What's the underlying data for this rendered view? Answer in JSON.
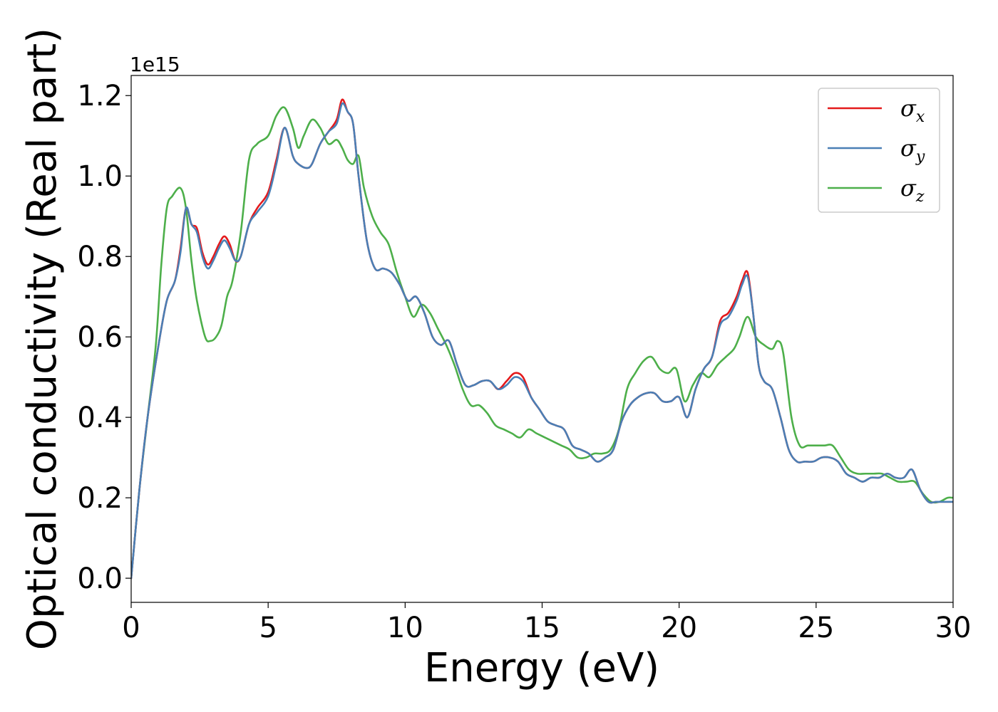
{
  "chart_data": {
    "type": "line",
    "title": "",
    "xlabel": "Energy (eV)",
    "ylabel": "Optical conductivity (Real part)",
    "y_offset_label": "1e15",
    "xlim": [
      0,
      30
    ],
    "ylim": [
      -0.06,
      1.25
    ],
    "xticks": [
      0,
      5,
      10,
      15,
      20,
      25,
      30
    ],
    "xtick_labels": [
      "0",
      "5",
      "10",
      "15",
      "20",
      "25",
      "30"
    ],
    "yticks": [
      0.0,
      0.2,
      0.4,
      0.6,
      0.8,
      1.0,
      1.2
    ],
    "ytick_labels": [
      "0.0",
      "0.2",
      "0.4",
      "0.6",
      "0.8",
      "1.0",
      "1.2"
    ],
    "grid": false,
    "legend_position": "top-right",
    "series": [
      {
        "name": "σx",
        "legend_symbol": "σ",
        "legend_sub": "x",
        "color": "#e41a1c",
        "x": [
          0,
          0.3,
          0.6,
          1.0,
          1.3,
          1.6,
          1.8,
          2.0,
          2.2,
          2.4,
          2.6,
          2.8,
          3.0,
          3.2,
          3.4,
          3.6,
          3.8,
          4.0,
          4.3,
          4.6,
          5.0,
          5.3,
          5.6,
          5.9,
          6.1,
          6.4,
          6.6,
          6.9,
          7.2,
          7.5,
          7.7,
          7.9,
          8.1,
          8.3,
          8.6,
          8.9,
          9.2,
          9.5,
          9.8,
          10.1,
          10.4,
          10.7,
          11.0,
          11.3,
          11.6,
          11.9,
          12.2,
          12.5,
          12.8,
          13.1,
          13.4,
          13.7,
          14.0,
          14.3,
          14.6,
          14.9,
          15.2,
          15.5,
          15.8,
          16.1,
          16.4,
          16.7,
          17.0,
          17.3,
          17.6,
          17.9,
          18.2,
          18.5,
          18.8,
          19.1,
          19.4,
          19.7,
          20.0,
          20.3,
          20.6,
          20.9,
          21.2,
          21.5,
          21.8,
          22.1,
          22.3,
          22.5,
          22.7,
          22.9,
          23.1,
          23.4,
          23.7,
          24.0,
          24.3,
          24.6,
          24.9,
          25.2,
          25.5,
          25.8,
          26.1,
          26.4,
          26.7,
          27.0,
          27.3,
          27.6,
          27.9,
          28.2,
          28.5,
          28.8,
          29.1,
          29.4,
          29.7,
          30.0
        ],
        "y": [
          0.0,
          0.22,
          0.4,
          0.58,
          0.69,
          0.74,
          0.82,
          0.92,
          0.88,
          0.87,
          0.81,
          0.78,
          0.8,
          0.83,
          0.85,
          0.83,
          0.79,
          0.8,
          0.88,
          0.92,
          0.96,
          1.04,
          1.12,
          1.05,
          1.03,
          1.02,
          1.03,
          1.08,
          1.11,
          1.14,
          1.19,
          1.16,
          1.13,
          1.0,
          0.84,
          0.77,
          0.77,
          0.76,
          0.73,
          0.69,
          0.7,
          0.66,
          0.6,
          0.58,
          0.59,
          0.53,
          0.48,
          0.48,
          0.49,
          0.49,
          0.47,
          0.49,
          0.51,
          0.5,
          0.45,
          0.42,
          0.39,
          0.38,
          0.37,
          0.33,
          0.32,
          0.31,
          0.29,
          0.3,
          0.32,
          0.39,
          0.43,
          0.45,
          0.46,
          0.46,
          0.44,
          0.44,
          0.45,
          0.4,
          0.47,
          0.52,
          0.55,
          0.64,
          0.66,
          0.7,
          0.74,
          0.76,
          0.66,
          0.53,
          0.49,
          0.47,
          0.4,
          0.32,
          0.29,
          0.29,
          0.29,
          0.3,
          0.3,
          0.29,
          0.26,
          0.25,
          0.24,
          0.25,
          0.25,
          0.26,
          0.25,
          0.25,
          0.27,
          0.22,
          0.19,
          0.19,
          0.19,
          0.19
        ]
      },
      {
        "name": "σy",
        "legend_symbol": "σ",
        "legend_sub": "y",
        "color": "#4a7fb5",
        "x": [
          0,
          0.3,
          0.6,
          1.0,
          1.3,
          1.6,
          1.8,
          2.0,
          2.2,
          2.4,
          2.6,
          2.8,
          3.0,
          3.2,
          3.4,
          3.6,
          3.8,
          4.0,
          4.3,
          4.6,
          5.0,
          5.3,
          5.6,
          5.9,
          6.1,
          6.4,
          6.6,
          6.9,
          7.2,
          7.5,
          7.7,
          7.9,
          8.1,
          8.3,
          8.6,
          8.9,
          9.2,
          9.5,
          9.8,
          10.1,
          10.4,
          10.7,
          11.0,
          11.3,
          11.6,
          11.9,
          12.2,
          12.5,
          12.8,
          13.1,
          13.4,
          13.7,
          14.0,
          14.3,
          14.6,
          14.9,
          15.2,
          15.5,
          15.8,
          16.1,
          16.4,
          16.7,
          17.0,
          17.3,
          17.6,
          17.9,
          18.2,
          18.5,
          18.8,
          19.1,
          19.4,
          19.7,
          20.0,
          20.3,
          20.6,
          20.9,
          21.2,
          21.5,
          21.8,
          22.1,
          22.3,
          22.5,
          22.7,
          22.9,
          23.1,
          23.4,
          23.7,
          24.0,
          24.3,
          24.6,
          24.9,
          25.2,
          25.5,
          25.8,
          26.1,
          26.4,
          26.7,
          27.0,
          27.3,
          27.6,
          27.9,
          28.2,
          28.5,
          28.8,
          29.1,
          29.4,
          29.7,
          30.0
        ],
        "y": [
          0.0,
          0.22,
          0.4,
          0.58,
          0.69,
          0.74,
          0.81,
          0.92,
          0.88,
          0.86,
          0.8,
          0.77,
          0.79,
          0.82,
          0.84,
          0.82,
          0.79,
          0.8,
          0.88,
          0.91,
          0.95,
          1.03,
          1.12,
          1.05,
          1.03,
          1.02,
          1.03,
          1.08,
          1.11,
          1.13,
          1.18,
          1.16,
          1.13,
          1.0,
          0.84,
          0.77,
          0.77,
          0.76,
          0.73,
          0.69,
          0.7,
          0.66,
          0.6,
          0.58,
          0.59,
          0.53,
          0.48,
          0.48,
          0.49,
          0.49,
          0.47,
          0.48,
          0.5,
          0.49,
          0.45,
          0.42,
          0.39,
          0.38,
          0.37,
          0.33,
          0.32,
          0.31,
          0.29,
          0.3,
          0.32,
          0.39,
          0.43,
          0.45,
          0.46,
          0.46,
          0.44,
          0.44,
          0.45,
          0.4,
          0.47,
          0.52,
          0.55,
          0.63,
          0.65,
          0.69,
          0.73,
          0.75,
          0.66,
          0.53,
          0.49,
          0.47,
          0.4,
          0.32,
          0.29,
          0.29,
          0.29,
          0.3,
          0.3,
          0.29,
          0.26,
          0.25,
          0.24,
          0.25,
          0.25,
          0.26,
          0.25,
          0.25,
          0.27,
          0.22,
          0.19,
          0.19,
          0.19,
          0.19
        ]
      },
      {
        "name": "σz",
        "legend_symbol": "σ",
        "legend_sub": "z",
        "color": "#4daf4a",
        "x": [
          0,
          0.3,
          0.6,
          0.9,
          1.1,
          1.3,
          1.5,
          1.8,
          2.0,
          2.2,
          2.4,
          2.7,
          2.9,
          3.1,
          3.3,
          3.5,
          3.7,
          4.0,
          4.3,
          4.6,
          5.0,
          5.3,
          5.6,
          5.9,
          6.1,
          6.3,
          6.6,
          6.9,
          7.2,
          7.5,
          7.7,
          7.9,
          8.1,
          8.3,
          8.5,
          8.8,
          9.1,
          9.4,
          9.7,
          10.0,
          10.3,
          10.6,
          10.9,
          11.2,
          11.5,
          11.8,
          12.1,
          12.4,
          12.7,
          13.0,
          13.3,
          13.6,
          13.9,
          14.2,
          14.5,
          14.8,
          15.1,
          15.4,
          15.7,
          16.0,
          16.3,
          16.6,
          16.9,
          17.2,
          17.5,
          17.8,
          18.1,
          18.4,
          18.7,
          19.0,
          19.3,
          19.6,
          19.9,
          20.2,
          20.5,
          20.8,
          21.1,
          21.4,
          21.7,
          22.0,
          22.2,
          22.5,
          22.8,
          23.1,
          23.4,
          23.6,
          23.8,
          24.1,
          24.4,
          24.7,
          25.0,
          25.3,
          25.6,
          25.9,
          26.2,
          26.5,
          26.8,
          27.1,
          27.4,
          27.7,
          28.0,
          28.3,
          28.6,
          28.9,
          29.2,
          29.5,
          29.8,
          30.0
        ],
        "y": [
          0.0,
          0.22,
          0.4,
          0.58,
          0.78,
          0.92,
          0.95,
          0.97,
          0.92,
          0.79,
          0.69,
          0.6,
          0.59,
          0.6,
          0.63,
          0.7,
          0.74,
          0.86,
          1.04,
          1.08,
          1.1,
          1.15,
          1.17,
          1.12,
          1.07,
          1.1,
          1.14,
          1.12,
          1.08,
          1.09,
          1.07,
          1.04,
          1.03,
          1.05,
          0.97,
          0.9,
          0.86,
          0.83,
          0.76,
          0.7,
          0.65,
          0.68,
          0.66,
          0.62,
          0.58,
          0.53,
          0.47,
          0.43,
          0.43,
          0.41,
          0.38,
          0.37,
          0.36,
          0.35,
          0.37,
          0.36,
          0.35,
          0.34,
          0.33,
          0.32,
          0.3,
          0.3,
          0.31,
          0.31,
          0.32,
          0.37,
          0.47,
          0.51,
          0.54,
          0.55,
          0.52,
          0.51,
          0.52,
          0.44,
          0.48,
          0.51,
          0.5,
          0.53,
          0.55,
          0.57,
          0.6,
          0.65,
          0.6,
          0.58,
          0.57,
          0.59,
          0.56,
          0.4,
          0.33,
          0.33,
          0.33,
          0.33,
          0.33,
          0.3,
          0.27,
          0.26,
          0.26,
          0.26,
          0.26,
          0.25,
          0.24,
          0.24,
          0.24,
          0.21,
          0.19,
          0.19,
          0.2,
          0.2
        ]
      }
    ]
  }
}
